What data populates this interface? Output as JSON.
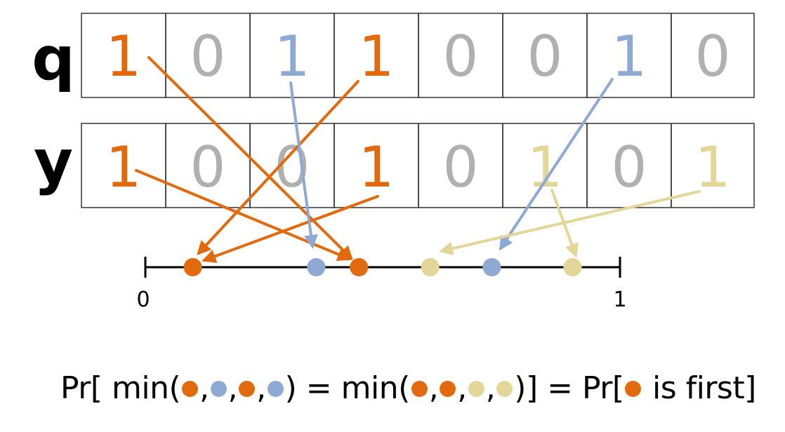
{
  "colors": {
    "orange": "#e2690c",
    "blue": "#8da9d4",
    "yellow": "#e3d699",
    "gray": "#b0b0b0",
    "grid": "#333333"
  },
  "rows": [
    {
      "label": "q",
      "cells": [
        {
          "value": "1",
          "color": "orange"
        },
        {
          "value": "0",
          "color": "gray"
        },
        {
          "value": "1",
          "color": "blue"
        },
        {
          "value": "1",
          "color": "orange"
        },
        {
          "value": "0",
          "color": "gray"
        },
        {
          "value": "0",
          "color": "gray"
        },
        {
          "value": "1",
          "color": "blue"
        },
        {
          "value": "0",
          "color": "gray"
        }
      ]
    },
    {
      "label": "y",
      "cells": [
        {
          "value": "1",
          "color": "orange"
        },
        {
          "value": "0",
          "color": "gray"
        },
        {
          "value": "0",
          "color": "gray"
        },
        {
          "value": "1",
          "color": "orange"
        },
        {
          "value": "0",
          "color": "gray"
        },
        {
          "value": "1",
          "color": "yellow"
        },
        {
          "value": "0",
          "color": "gray"
        },
        {
          "value": "1",
          "color": "yellow"
        }
      ]
    }
  ],
  "number_line": {
    "start_label": "0",
    "end_label": "1",
    "points": [
      {
        "value": 0.1,
        "color": "orange"
      },
      {
        "value": 0.36,
        "color": "blue"
      },
      {
        "value": 0.45,
        "color": "orange"
      },
      {
        "value": 0.6,
        "color": "yellow"
      },
      {
        "value": 0.73,
        "color": "blue"
      },
      {
        "value": 0.9,
        "color": "yellow"
      }
    ]
  },
  "formula": {
    "pr_open": "Pr[ min(",
    "sep": ",",
    "close_mid": ") = min(",
    "close_end": ")] = Pr[",
    "tail": " is first]"
  }
}
